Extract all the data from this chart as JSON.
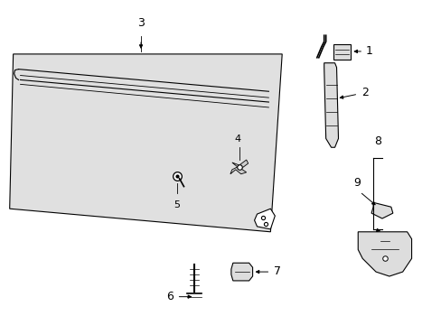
{
  "background_color": "#ffffff",
  "line_color": "#000000",
  "light_fill": "#e0e0e0",
  "fig_width": 4.89,
  "fig_height": 3.6,
  "dpi": 100
}
